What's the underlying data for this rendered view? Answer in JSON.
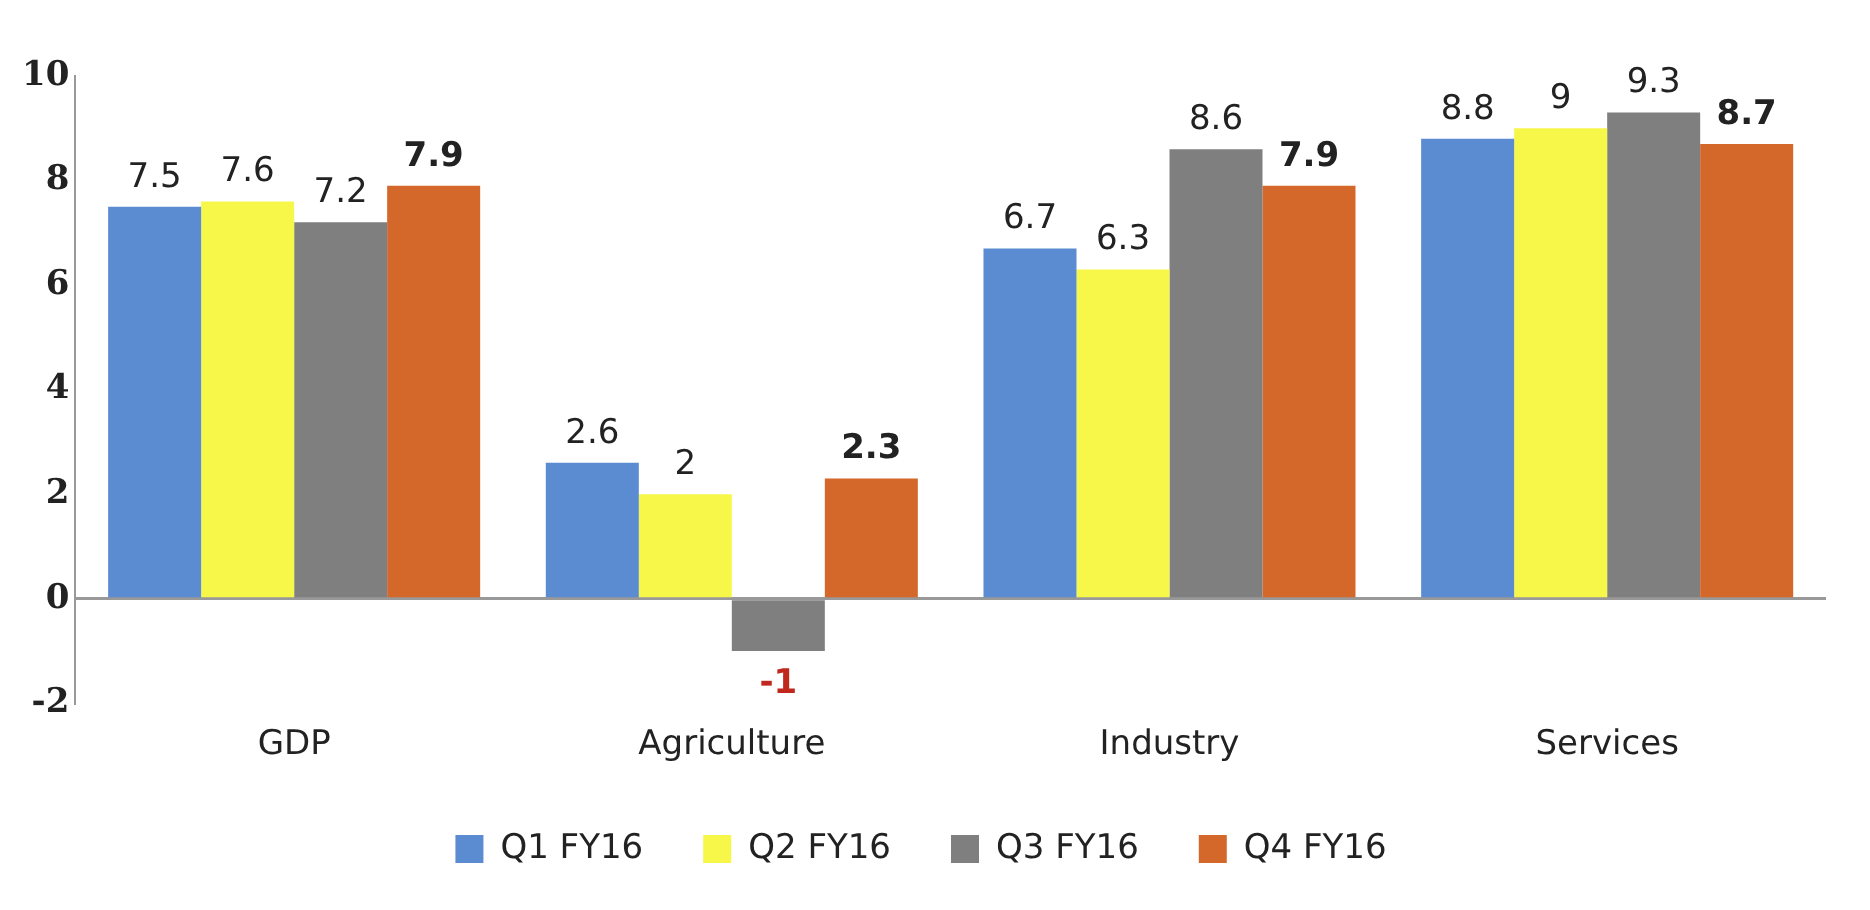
{
  "chart_data": {
    "type": "bar",
    "categories": [
      "GDP",
      "Agriculture",
      "Industry",
      "Services"
    ],
    "series": [
      {
        "name": "Q1 FY16",
        "color": "#5b8bd0",
        "values": [
          7.5,
          2.6,
          6.7,
          8.8
        ]
      },
      {
        "name": "Q2 FY16",
        "color": "#f7f74a",
        "values": [
          7.6,
          2,
          6.3,
          9
        ]
      },
      {
        "name": "Q3 FY16",
        "color": "#7f7f7f",
        "values": [
          7.2,
          -1,
          8.6,
          9.3
        ]
      },
      {
        "name": "Q4 FY16",
        "color": "#d4682a",
        "values": [
          7.9,
          2.3,
          7.9,
          8.7
        ]
      }
    ],
    "ylim": [
      -2,
      10
    ],
    "yticks": [
      -2,
      0,
      2,
      4,
      6,
      8,
      10
    ],
    "data_labels": true,
    "legend": "bottom"
  }
}
